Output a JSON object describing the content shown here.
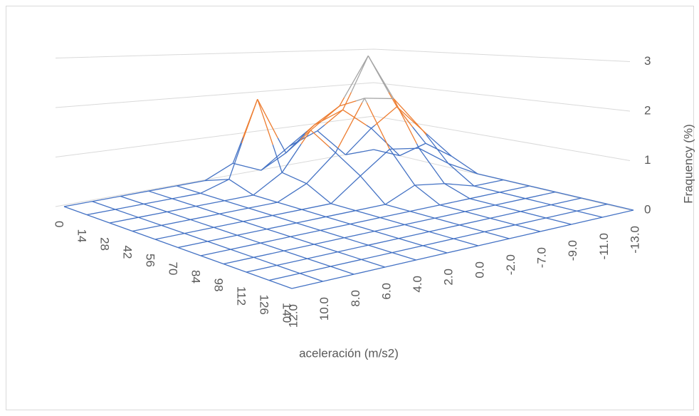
{
  "chart_data": {
    "type": "surface",
    "x_title": "aceleración (m/s2)",
    "z_title": "Fraquency (%)",
    "rows": [
      0,
      14,
      28,
      42,
      56,
      70,
      84,
      98,
      112,
      126,
      140
    ],
    "columns": [
      "12.0",
      "10.0",
      "8.0",
      "6.0",
      "4.0",
      "2.0",
      "0.0",
      "-2.0",
      "-7.0",
      "-9.0",
      "-11.0",
      "-13.0"
    ],
    "values": [
      [
        0,
        0,
        0,
        0,
        0,
        0,
        0.3,
        0,
        0.5,
        0.8,
        0,
        0
      ],
      [
        0,
        0,
        0,
        0,
        0,
        0.2,
        2.0,
        0.6,
        1.2,
        1.5,
        0.9,
        0
      ],
      [
        0,
        0,
        0,
        0,
        0,
        0,
        0.4,
        1.3,
        1.8,
        3.0,
        1.6,
        0.5
      ],
      [
        0,
        0,
        0,
        0,
        0,
        0,
        0.3,
        0.9,
        2.1,
        2.0,
        1.1,
        0.3
      ],
      [
        0,
        0,
        0,
        0,
        0,
        0,
        0,
        0.5,
        1.0,
        0.9,
        0.4,
        0
      ],
      [
        0,
        0,
        0,
        0,
        0,
        0,
        0,
        0,
        0.3,
        0.2,
        0,
        0
      ],
      [
        0,
        0,
        0,
        0,
        0,
        0,
        0,
        0,
        0,
        0,
        0,
        0
      ],
      [
        0,
        0,
        0,
        0,
        0,
        0,
        0,
        0,
        0,
        0,
        0,
        0
      ],
      [
        0,
        0,
        0,
        0,
        0,
        0,
        0,
        0,
        0,
        0,
        0,
        0
      ],
      [
        0,
        0,
        0,
        0,
        0,
        0,
        0,
        0,
        0,
        0,
        0,
        0
      ],
      [
        0,
        0,
        0,
        0,
        0,
        0,
        0,
        0,
        0,
        0,
        0,
        0
      ]
    ],
    "zlim": [
      0,
      3
    ],
    "zticks": [
      0,
      1,
      2,
      3
    ],
    "band_colors": [
      "#4472c4",
      "#ed7d31",
      "#a5a5a5"
    ]
  }
}
